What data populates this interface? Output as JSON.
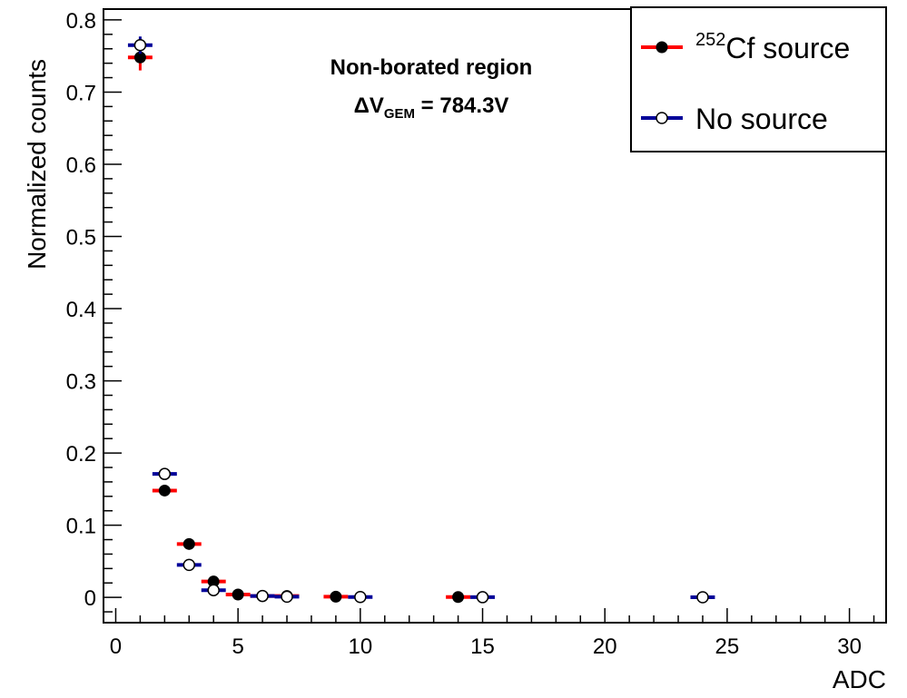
{
  "chart_data": {
    "type": "scatter",
    "xlabel": "ADC",
    "ylabel": "Normalized counts",
    "xlim": [
      -0.5,
      31.5
    ],
    "ylim": [
      -0.035,
      0.815
    ],
    "x_ticks": [
      0,
      5,
      10,
      15,
      20,
      25,
      30
    ],
    "y_ticks": [
      0,
      0.1,
      0.2,
      0.3,
      0.4,
      0.5,
      0.6,
      0.7,
      0.8
    ],
    "x_tick_labels": [
      "0",
      "5",
      "10",
      "15",
      "20",
      "25",
      "30"
    ],
    "y_tick_labels": [
      "0",
      "0.1",
      "0.2",
      "0.3",
      "0.4",
      "0.5",
      "0.6",
      "0.7",
      "0.8"
    ],
    "annotation": {
      "line1": "Non-borated region",
      "line2_prefix": "ΔV",
      "line2_sub": "GEM",
      "line2_suffix": " = 784.3V"
    },
    "legend": {
      "position": "top-right",
      "entries": [
        {
          "sup": "252",
          "label": "Cf source",
          "marker": "filled",
          "color": "#ff0000"
        },
        {
          "sup": "",
          "label": "No source",
          "marker": "open",
          "color": "#000099"
        }
      ]
    },
    "series": [
      {
        "name": "252Cf source",
        "color": "#ff0000",
        "marker": "filled",
        "x": [
          1,
          2,
          3,
          4,
          5,
          6,
          7,
          9,
          14
        ],
        "y": [
          0.748,
          0.148,
          0.074,
          0.022,
          0.004,
          0.002,
          0.002,
          0.001,
          0.0005
        ],
        "yerr": [
          0.018,
          0.004,
          0.003,
          0.002,
          0.001,
          0.001,
          0.001,
          0.001,
          0.0005
        ]
      },
      {
        "name": "No source",
        "color": "#000099",
        "marker": "open",
        "x": [
          1,
          2,
          3,
          4,
          6,
          7,
          10,
          15,
          24
        ],
        "y": [
          0.765,
          0.171,
          0.045,
          0.01,
          0.002,
          0.001,
          0.0005,
          0.0003,
          0.0002
        ],
        "yerr": [
          0.012,
          0.004,
          0.002,
          0.001,
          0.001,
          0.001,
          0.0005,
          0.0003,
          0.0002
        ]
      }
    ]
  }
}
